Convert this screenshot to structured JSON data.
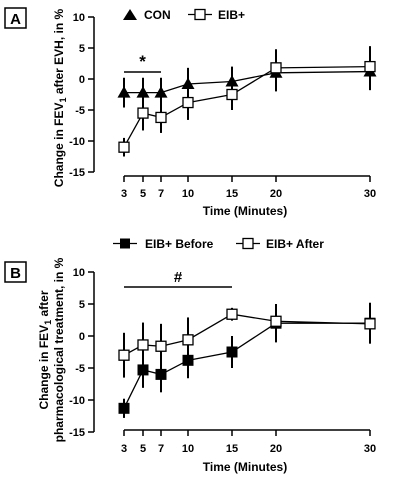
{
  "panels": [
    {
      "label": "A",
      "x_ticks": [
        3,
        5,
        7,
        10,
        15,
        20,
        30
      ],
      "y_ticks": [
        -15,
        -10,
        -5,
        0,
        5,
        10
      ],
      "xlabel": "Time (Minutes)",
      "ylabel": "Change in FEV1 after EVH, in %",
      "legend": [
        "CON",
        "EIB+"
      ],
      "annotation": {
        "text": "*",
        "from_x": 3,
        "to_x": 7
      }
    },
    {
      "label": "B",
      "x_ticks": [
        3,
        5,
        7,
        10,
        15,
        20,
        30
      ],
      "y_ticks": [
        -15,
        -10,
        -5,
        0,
        5,
        10
      ],
      "xlabel": "Time (Minutes)",
      "ylabel_line1": "Change in FEV1 after",
      "ylabel_line2": "pharmacological treatment, in %",
      "legend": [
        "EIB+ Before",
        "EIB+ After"
      ],
      "annotation": {
        "text": "#",
        "from_x": 3,
        "to_x": 15
      }
    }
  ],
  "chart_data": [
    {
      "type": "line",
      "xlabel": "Time (Minutes)",
      "ylabel": "Change in FEV1 after EVH, in %",
      "ylim": [
        -15,
        10
      ],
      "x": [
        3,
        5,
        7,
        10,
        15,
        20,
        30
      ],
      "series": [
        {
          "name": "CON",
          "marker": "triangle-filled",
          "values": [
            -2.2,
            -2.2,
            -2.2,
            -0.8,
            -0.4,
            1.0,
            1.2
          ],
          "error": [
            2.4,
            2.4,
            2.4,
            2.6,
            2.4,
            3.0,
            3.0
          ]
        },
        {
          "name": "EIB+",
          "marker": "square-open",
          "values": [
            -11.0,
            -5.5,
            -6.2,
            -3.8,
            -2.5,
            1.8,
            2.0
          ],
          "error": [
            1.5,
            2.8,
            2.5,
            2.8,
            2.5,
            3.0,
            3.3
          ]
        }
      ]
    },
    {
      "type": "line",
      "xlabel": "Time (Minutes)",
      "ylabel": "Change in FEV1 after pharmacological treatment, in %",
      "ylim": [
        -15,
        10
      ],
      "x": [
        3,
        5,
        7,
        10,
        15,
        20,
        30
      ],
      "series": [
        {
          "name": "EIB+ Before",
          "marker": "square-filled",
          "values": [
            -11.3,
            -5.3,
            -6.0,
            -3.8,
            -2.5,
            2.0,
            2.0
          ],
          "error": [
            1.5,
            2.8,
            2.8,
            2.8,
            2.5,
            3.0,
            3.2
          ]
        },
        {
          "name": "EIB+ After",
          "marker": "square-open",
          "values": [
            -3.0,
            -1.4,
            -1.6,
            -0.6,
            3.4,
            2.3,
            1.9
          ],
          "error": [
            3.5,
            3.5,
            3.5,
            3.5,
            1.0,
            2.5,
            2.5
          ]
        }
      ]
    }
  ]
}
